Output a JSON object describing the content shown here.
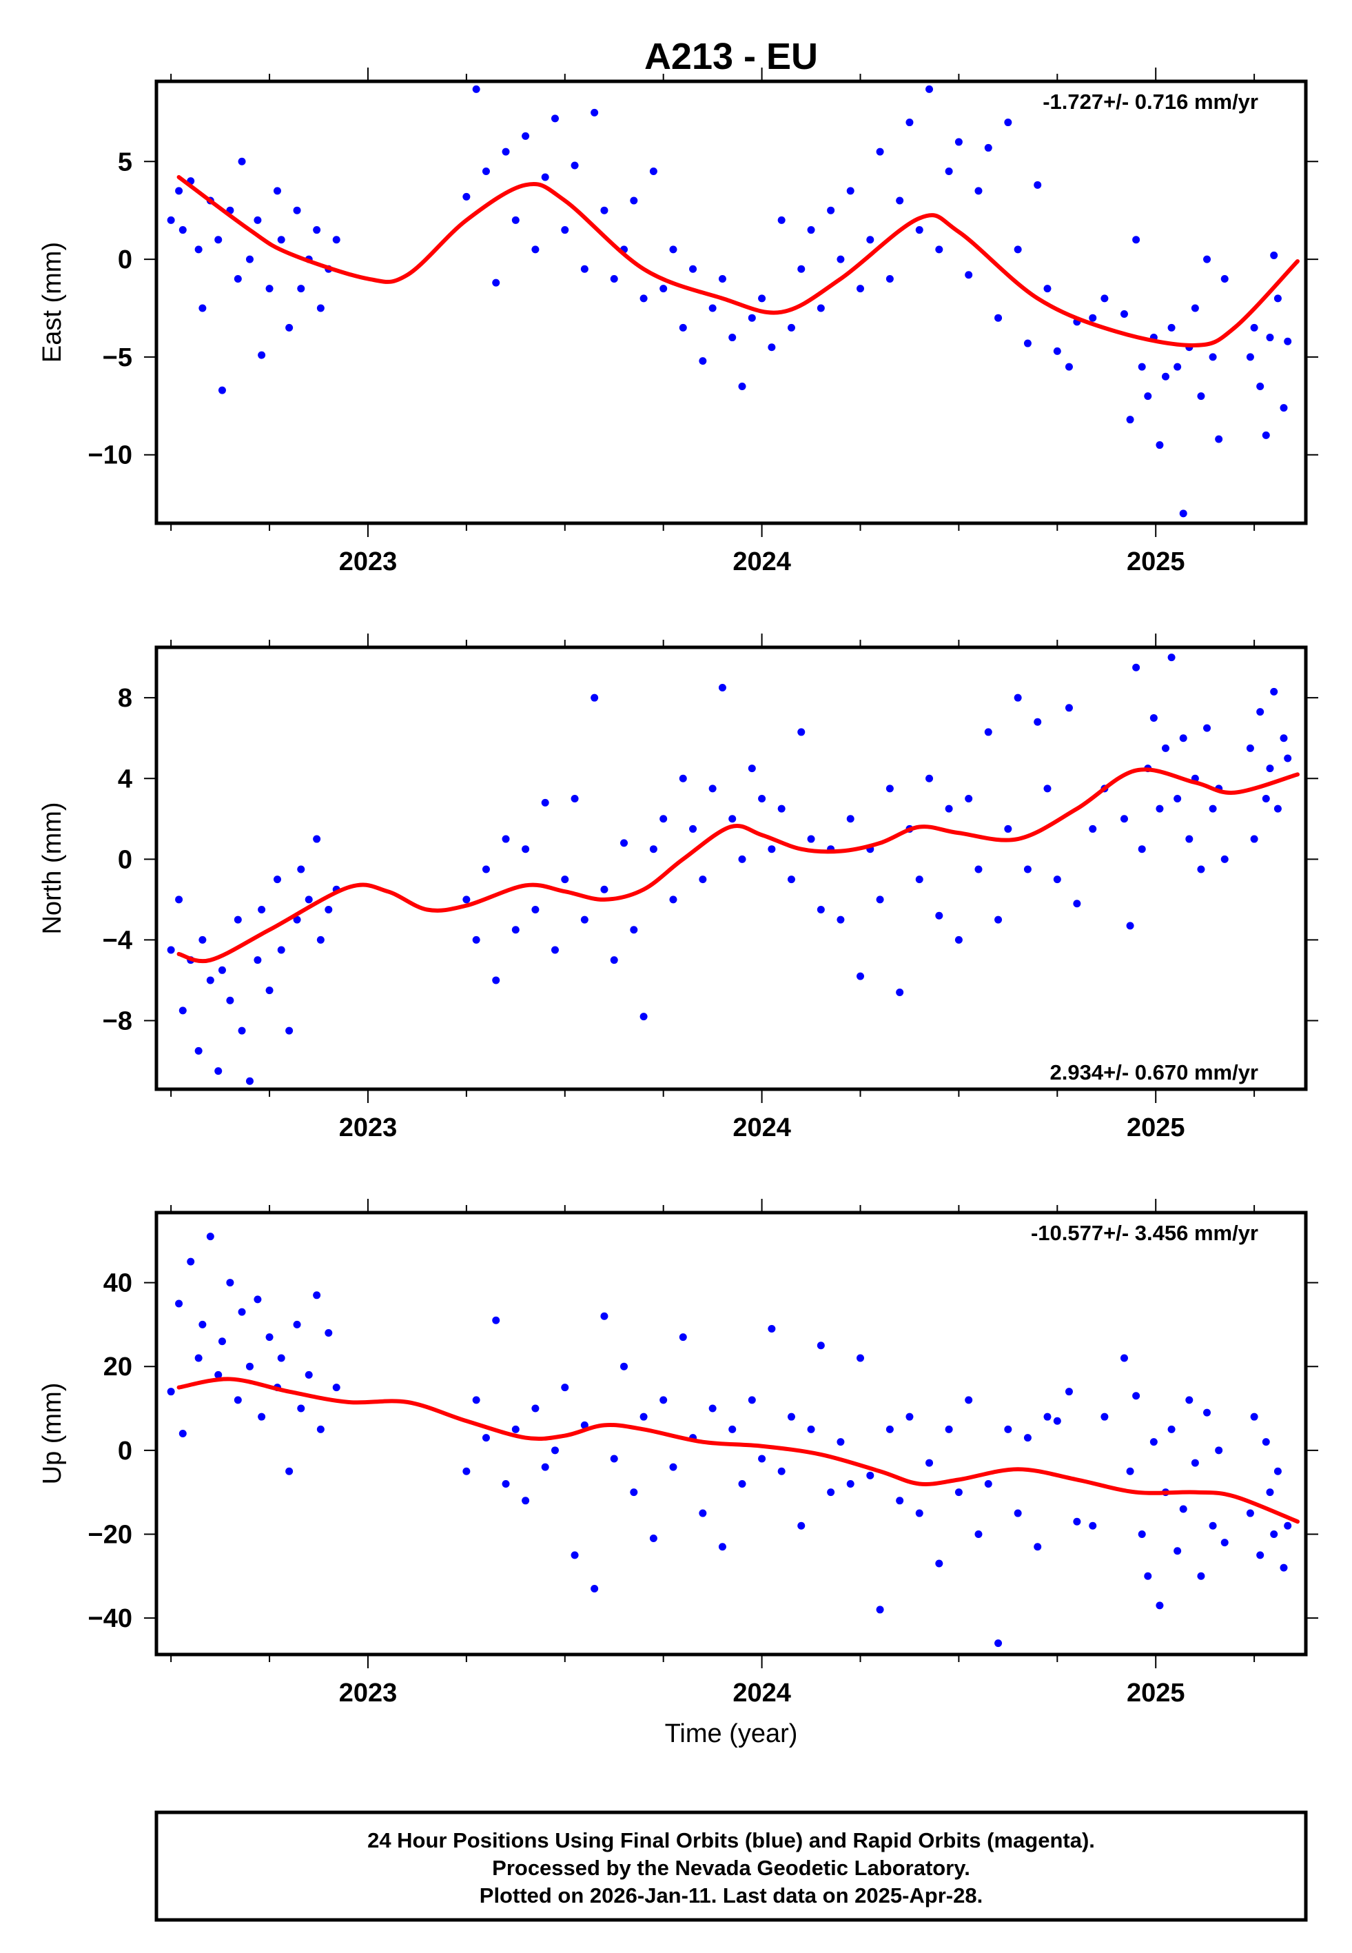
{
  "title": "A213 - EU",
  "xlabel": "Time (year)",
  "footer": {
    "line1": "24 Hour Positions Using Final Orbits (blue) and Rapid Orbits (magenta).",
    "line2": "Processed by the Nevada Geodetic Laboratory.",
    "line3": "Plotted on 2026-Jan-11. Last data on 2025-Apr-28."
  },
  "colors": {
    "points": "#0000ff",
    "fit": "#ff0000",
    "frame": "#000000"
  },
  "chart_data": {
    "type": "scatter",
    "xlim": [
      2022.463,
      2025.381
    ],
    "x_ticks": [
      "2023",
      "2024",
      "2025"
    ],
    "x_tick_values": [
      2023,
      2024,
      2025
    ],
    "x_minor_step": 0.25,
    "times": [
      2022.5,
      2022.52,
      2022.53,
      2022.55,
      2022.57,
      2022.58,
      2022.6,
      2022.62,
      2022.63,
      2022.65,
      2022.67,
      2022.68,
      2022.7,
      2022.72,
      2022.73,
      2022.75,
      2022.77,
      2022.78,
      2022.8,
      2022.82,
      2022.83,
      2022.85,
      2022.87,
      2022.88,
      2022.9,
      2022.92,
      2023.25,
      2023.275,
      2023.3,
      2023.325,
      2023.35,
      2023.375,
      2023.4,
      2023.425,
      2023.45,
      2023.475,
      2023.5,
      2023.525,
      2023.55,
      2023.575,
      2023.6,
      2023.625,
      2023.65,
      2023.675,
      2023.7,
      2023.725,
      2023.75,
      2023.775,
      2023.8,
      2023.825,
      2023.85,
      2023.875,
      2023.9,
      2023.925,
      2023.95,
      2023.975,
      2024.0,
      2024.025,
      2024.05,
      2024.075,
      2024.1,
      2024.125,
      2024.15,
      2024.175,
      2024.2,
      2024.225,
      2024.25,
      2024.275,
      2024.3,
      2024.325,
      2024.35,
      2024.375,
      2024.4,
      2024.425,
      2024.45,
      2024.475,
      2024.5,
      2024.525,
      2024.55,
      2024.575,
      2024.6,
      2024.625,
      2024.65,
      2024.675,
      2024.7,
      2024.725,
      2024.75,
      2024.78,
      2024.8,
      2024.84,
      2024.87,
      2024.92,
      2024.935,
      2024.95,
      2024.965,
      2024.98,
      2024.995,
      2025.01,
      2025.025,
      2025.04,
      2025.055,
      2025.07,
      2025.085,
      2025.1,
      2025.115,
      2025.13,
      2025.145,
      2025.16,
      2025.175,
      2025.24,
      2025.25,
      2025.265,
      2025.28,
      2025.29,
      2025.3,
      2025.31,
      2025.325,
      2025.335
    ],
    "panels": [
      {
        "name": "east",
        "ylabel": "East (mm)",
        "ylim": [
          -13.5,
          9.1
        ],
        "y_ticks": [
          "5",
          "0",
          "−10"
        ],
        "y_tick_values": [
          5,
          0,
          -10
        ],
        "y_tick_labels_all": {
          "5": "5",
          "0": "0",
          "-5": "−5",
          "-10": "−10"
        },
        "rate_text": "-1.727+/- 0.716 mm/yr",
        "rate_position": "top-right",
        "values": [
          2.0,
          3.5,
          1.5,
          4.0,
          0.5,
          -2.5,
          3.0,
          1.0,
          -6.7,
          2.5,
          -1.0,
          5.0,
          0.0,
          2.0,
          -4.9,
          -1.5,
          3.5,
          1.0,
          -3.5,
          2.5,
          -1.5,
          0.0,
          1.5,
          -2.5,
          -0.5,
          1.0,
          3.2,
          8.7,
          4.5,
          -1.2,
          5.5,
          2.0,
          6.3,
          0.5,
          4.2,
          7.2,
          1.5,
          4.8,
          -0.5,
          7.5,
          2.5,
          -1.0,
          0.5,
          3.0,
          -2.0,
          4.5,
          -1.5,
          0.5,
          -3.5,
          -0.5,
          -5.2,
          -2.5,
          -1.0,
          -4.0,
          -6.5,
          -3.0,
          -2.0,
          -4.5,
          2.0,
          -3.5,
          -0.5,
          1.5,
          -2.5,
          2.5,
          0.0,
          3.5,
          -1.5,
          1.0,
          5.5,
          -1.0,
          3.0,
          7.0,
          1.5,
          8.7,
          0.5,
          4.5,
          6.0,
          -0.8,
          3.5,
          5.7,
          -3.0,
          7.0,
          0.5,
          -4.3,
          3.8,
          -1.5,
          -4.7,
          -5.5,
          -3.2,
          -3.0,
          -2.0,
          -2.8,
          -8.2,
          1.0,
          -5.5,
          -7.0,
          -4.0,
          -9.5,
          -6.0,
          -3.5,
          -5.5,
          -13.0,
          -4.5,
          -2.5,
          -7.0,
          0.0,
          -5.0,
          -9.2,
          -1.0,
          -5.0,
          -3.5,
          -6.5,
          -9.0,
          -4.0,
          0.2,
          -2.0,
          -7.6,
          -4.2
        ],
        "fit": {
          "x": [
            2022.52,
            2022.7,
            2022.8,
            2023.0,
            2023.1,
            2023.25,
            2023.4,
            2023.5,
            2023.7,
            2023.9,
            2024.05,
            2024.2,
            2024.4,
            2024.5,
            2024.7,
            2024.9,
            2025.1,
            2025.2,
            2025.36
          ],
          "y": [
            4.2,
            1.5,
            0.3,
            -1.0,
            -0.8,
            2.0,
            3.8,
            3.0,
            -0.5,
            -2.0,
            -2.7,
            -1.0,
            2.1,
            1.4,
            -2.0,
            -3.7,
            -4.4,
            -3.5,
            -0.1
          ]
        }
      },
      {
        "name": "north",
        "ylabel": "North (mm)",
        "ylim": [
          -11.4,
          10.5
        ],
        "y_tick_values": [
          8,
          4,
          0,
          -4,
          -8
        ],
        "y_tick_labels_all": {
          "8": "8",
          "4": "4",
          "0": "0",
          "-4": "−4",
          "-8": "−8"
        },
        "rate_text": "2.934+/- 0.670 mm/yr",
        "rate_position": "bottom-right",
        "values": [
          -4.5,
          -2.0,
          -7.5,
          -5.0,
          -9.5,
          -4.0,
          -6.0,
          -10.5,
          -5.5,
          -7.0,
          -3.0,
          -8.5,
          -11.0,
          -5.0,
          -2.5,
          -6.5,
          -1.0,
          -4.5,
          -8.5,
          -3.0,
          -0.5,
          -2.0,
          1.0,
          -4.0,
          -2.5,
          -1.5,
          -2.0,
          -4.0,
          -0.5,
          -6.0,
          1.0,
          -3.5,
          0.5,
          -2.5,
          2.8,
          -4.5,
          -1.0,
          3.0,
          -3.0,
          8.0,
          -1.5,
          -5.0,
          0.8,
          -3.5,
          -7.8,
          0.5,
          2.0,
          -2.0,
          4.0,
          1.5,
          -1.0,
          3.5,
          8.5,
          2.0,
          0.0,
          4.5,
          3.0,
          0.5,
          2.5,
          -1.0,
          6.3,
          1.0,
          -2.5,
          0.5,
          -3.0,
          2.0,
          -5.8,
          0.5,
          -2.0,
          3.5,
          -6.6,
          1.5,
          -1.0,
          4.0,
          -2.8,
          2.5,
          -4.0,
          3.0,
          -0.5,
          6.3,
          -3.0,
          1.5,
          8.0,
          -0.5,
          6.8,
          3.5,
          -1.0,
          7.5,
          -2.2,
          1.5,
          3.5,
          2.0,
          -3.3,
          9.5,
          0.5,
          4.5,
          7.0,
          2.5,
          5.5,
          10.0,
          3.0,
          6.0,
          1.0,
          4.0,
          -0.5,
          6.5,
          2.5,
          3.5,
          0.0,
          5.5,
          1.0,
          7.3,
          3.0,
          4.5,
          8.3,
          2.5,
          6.0,
          5.0
        ],
        "fit": {
          "x": [
            2022.52,
            2022.6,
            2022.75,
            2022.95,
            2023.05,
            2023.15,
            2023.25,
            2023.4,
            2023.5,
            2023.6,
            2023.7,
            2023.8,
            2023.92,
            2024.0,
            2024.1,
            2024.2,
            2024.3,
            2024.4,
            2024.5,
            2024.65,
            2024.8,
            2024.95,
            2025.1,
            2025.2,
            2025.36
          ],
          "y": [
            -4.7,
            -5.0,
            -3.5,
            -1.4,
            -1.6,
            -2.5,
            -2.3,
            -1.3,
            -1.6,
            -2.0,
            -1.5,
            0.0,
            1.6,
            1.2,
            0.5,
            0.4,
            0.8,
            1.6,
            1.3,
            1.0,
            2.5,
            4.4,
            3.8,
            3.3,
            4.2
          ]
        }
      },
      {
        "name": "up",
        "ylabel": "Up (mm)",
        "ylim": [
          -48.7,
          56.7
        ],
        "y_tick_values": [
          40,
          20,
          0,
          -20,
          -40
        ],
        "y_tick_labels_all": {
          "40": "40",
          "20": "20",
          "0": "0",
          "-20": "−20",
          "-40": "−40"
        },
        "rate_text": "-10.577+/- 3.456 mm/yr",
        "rate_position": "top-right",
        "values": [
          14,
          35,
          4,
          45,
          22,
          30,
          51,
          18,
          26,
          40,
          12,
          33,
          20,
          36,
          8,
          27,
          15,
          22,
          -5,
          30,
          10,
          18,
          37,
          5,
          28,
          15,
          -5,
          12,
          3,
          31,
          -8,
          5,
          -12,
          10,
          -4,
          0,
          15,
          -25,
          6,
          -33,
          32,
          -2,
          20,
          -10,
          8,
          -21,
          12,
          -4,
          27,
          3,
          -15,
          10,
          -23,
          5,
          -8,
          12,
          -2,
          29,
          -5,
          8,
          -18,
          5,
          25,
          -10,
          2,
          -8,
          22,
          -6,
          -38,
          5,
          -12,
          8,
          -15,
          -3,
          -27,
          5,
          -10,
          12,
          -20,
          -8,
          -46,
          5,
          -15,
          3,
          -23,
          8,
          7,
          14,
          -17,
          -18,
          8,
          22,
          -5,
          13,
          -20,
          -30,
          2,
          -37,
          -10,
          5,
          -24,
          -14,
          12,
          -3,
          -30,
          9,
          -18,
          0,
          -22,
          -15,
          8,
          -25,
          2,
          -10,
          -20,
          -5,
          -28,
          -18
        ],
        "fit": {
          "x": [
            2022.52,
            2022.65,
            2022.8,
            2022.95,
            2023.1,
            2023.25,
            2023.4,
            2023.5,
            2023.6,
            2023.7,
            2023.85,
            2024.0,
            2024.15,
            2024.3,
            2024.4,
            2024.5,
            2024.65,
            2024.8,
            2024.95,
            2025.1,
            2025.2,
            2025.36
          ],
          "y": [
            15,
            17,
            14,
            11.5,
            11.5,
            7,
            3,
            3.5,
            6,
            5,
            2,
            1,
            -1,
            -5,
            -8,
            -7,
            -4.5,
            -7,
            -10,
            -10,
            -11,
            -17
          ]
        }
      }
    ]
  }
}
